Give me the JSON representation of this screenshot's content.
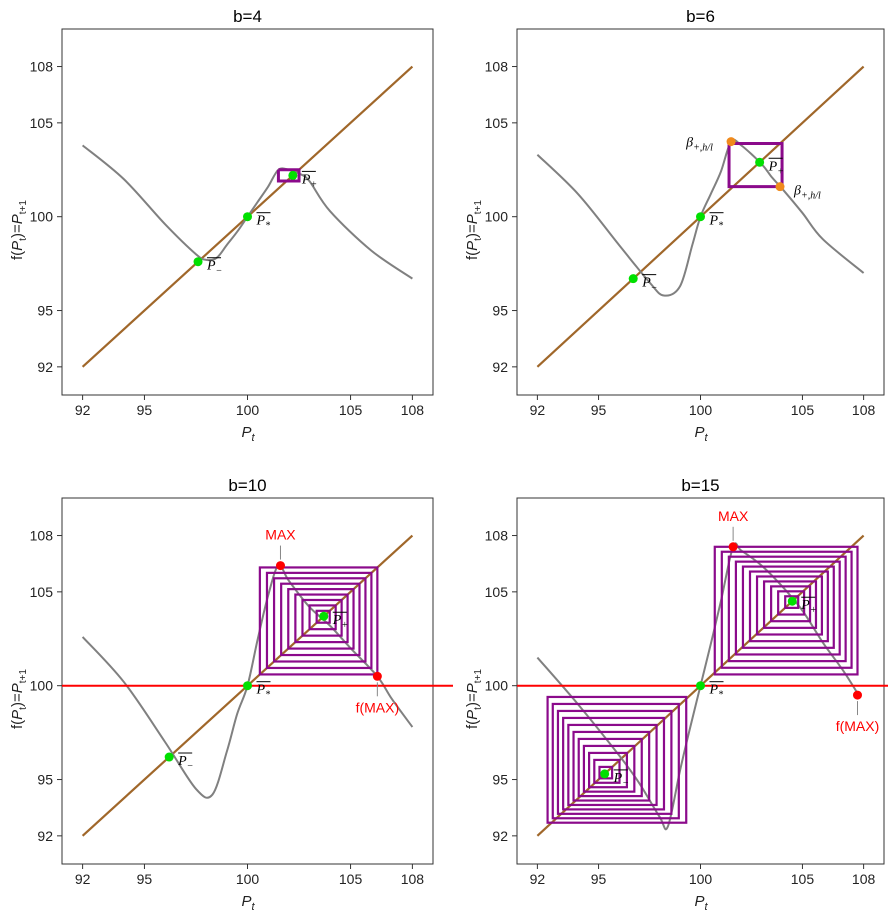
{
  "colors": {
    "diagonal": "#a0672a",
    "map_curve": "#808080",
    "cobweb": "#8b0a8b",
    "fixed_point": "#00e000",
    "max_marker": "#ff0000",
    "beta_marker": "#f08a1c",
    "horizontal_line": "#ff0000"
  },
  "chart_data": [
    {
      "type": "line",
      "title": "b=4",
      "b": 4,
      "xlabel": "P_t",
      "ylabel": "f(P_t)=P_{t+1}",
      "xlim": [
        91,
        109
      ],
      "ylim": [
        90.5,
        110
      ],
      "xticks": [
        92,
        95,
        100,
        105,
        108
      ],
      "yticks": [
        92,
        95,
        100,
        105,
        108
      ],
      "series": [
        {
          "kind": "diagonal",
          "x": [
            92,
            108
          ],
          "y": [
            92,
            108
          ]
        },
        {
          "kind": "map",
          "x": [
            92,
            94,
            96,
            97.5,
            98,
            98.5,
            99,
            99.5,
            100,
            100.5,
            101,
            101.5,
            102,
            102.5,
            103,
            104,
            106,
            108
          ],
          "y": [
            103.8,
            102,
            99.6,
            98,
            97.7,
            97.8,
            98.5,
            99.2,
            100,
            100.8,
            101.6,
            102.5,
            102.5,
            102.3,
            101.9,
            100.3,
            98.2,
            96.7
          ]
        },
        {
          "kind": "cobweb",
          "points": [
            [
              101.5,
              102.5
            ],
            [
              102.5,
              102.5
            ],
            [
              102.5,
              101.9
            ],
            [
              101.5,
              101.9
            ],
            [
              101.5,
              102.5
            ]
          ]
        }
      ],
      "fixed_points": [
        {
          "x": 97.6,
          "y": 97.6,
          "label": "P-"
        },
        {
          "x": 100,
          "y": 100,
          "label": "P*"
        },
        {
          "x": 102.2,
          "y": 102.2,
          "label": "P+"
        }
      ],
      "special_points": []
    },
    {
      "type": "line",
      "title": "b=6",
      "b": 6,
      "xlabel": "P_t",
      "ylabel": "f(P_t)=P_{t+1}",
      "xlim": [
        91,
        109
      ],
      "ylim": [
        90.5,
        110
      ],
      "xticks": [
        92,
        95,
        100,
        105,
        108
      ],
      "yticks": [
        92,
        95,
        100,
        105,
        108
      ],
      "series": [
        {
          "kind": "diagonal",
          "x": [
            92,
            108
          ],
          "y": [
            92,
            108
          ]
        },
        {
          "kind": "map",
          "x": [
            92,
            94,
            96,
            97.5,
            98.2,
            99,
            99.6,
            100,
            100.5,
            101,
            101.5,
            102,
            103,
            103.5,
            104,
            105,
            106,
            108
          ],
          "y": [
            103.3,
            101.2,
            98.5,
            96.5,
            95.8,
            96.3,
            98.5,
            100,
            101.2,
            102.4,
            104,
            103.8,
            102.8,
            102.1,
            101.5,
            100.2,
            98.8,
            97
          ]
        },
        {
          "kind": "cobweb",
          "points": [
            [
              101.4,
              103.9
            ],
            [
              104,
              103.9
            ],
            [
              104,
              101.6
            ],
            [
              101.4,
              101.6
            ],
            [
              101.4,
              103.9
            ]
          ]
        }
      ],
      "fixed_points": [
        {
          "x": 96.7,
          "y": 96.7,
          "label": "P-"
        },
        {
          "x": 100,
          "y": 100,
          "label": "P*"
        },
        {
          "x": 102.9,
          "y": 102.9,
          "label": "P+"
        }
      ],
      "special_points": [
        {
          "x": 101.5,
          "y": 104.0,
          "kind": "beta",
          "label": "β+,h/l"
        },
        {
          "x": 103.9,
          "y": 101.6,
          "kind": "beta",
          "label": "β+,h/l"
        }
      ]
    },
    {
      "type": "line",
      "title": "b=10",
      "b": 10,
      "xlabel": "P_t",
      "ylabel": "f(P_t)=P_{t+1}",
      "xlim": [
        91,
        109
      ],
      "ylim": [
        90.5,
        110
      ],
      "xticks": [
        92,
        95,
        100,
        105,
        108
      ],
      "yticks": [
        92,
        95,
        100,
        105,
        108
      ],
      "hline": 100,
      "series": [
        {
          "kind": "diagonal",
          "x": [
            92,
            108
          ],
          "y": [
            92,
            108
          ]
        },
        {
          "kind": "map",
          "x": [
            92,
            94,
            96,
            97.5,
            98.3,
            99,
            99.5,
            100,
            100.5,
            101,
            101.5,
            102,
            103,
            104,
            105,
            106.3,
            107,
            108
          ],
          "y": [
            102.6,
            100.2,
            97,
            94.5,
            94.2,
            96.5,
            98.5,
            100,
            102.5,
            104.8,
            106.4,
            105.6,
            104.2,
            103.2,
            102,
            100.5,
            99.3,
            97.8
          ]
        },
        {
          "kind": "cobweb-nest",
          "center": 103.7,
          "outer": [
            100.6,
            106.3,
            100.6,
            106.3
          ],
          "rings": 9
        }
      ],
      "fixed_points": [
        {
          "x": 96.2,
          "y": 96.2,
          "label": "P-"
        },
        {
          "x": 100,
          "y": 100,
          "label": "P*"
        },
        {
          "x": 103.7,
          "y": 103.7,
          "label": "P+"
        }
      ],
      "special_points": [
        {
          "x": 101.6,
          "y": 106.4,
          "kind": "max",
          "label": "MAX"
        },
        {
          "x": 106.3,
          "y": 100.5,
          "kind": "max",
          "label": "f(MAX)"
        }
      ]
    },
    {
      "type": "line",
      "title": "b=15",
      "b": 15,
      "xlabel": "P_t",
      "ylabel": "f(P_t)=P_{t+1}",
      "xlim": [
        91,
        109
      ],
      "ylim": [
        90.5,
        110
      ],
      "xticks": [
        92,
        95,
        100,
        105,
        108
      ],
      "yticks": [
        92,
        95,
        100,
        105,
        108
      ],
      "hline": 100,
      "series": [
        {
          "kind": "diagonal",
          "x": [
            92,
            108
          ],
          "y": [
            92,
            108
          ]
        },
        {
          "kind": "map",
          "x": [
            92,
            94,
            96,
            97,
            98,
            98.4,
            99,
            99.5,
            100,
            100.5,
            101,
            101.6,
            102,
            103,
            104,
            105,
            106,
            107,
            107.7
          ],
          "y": [
            101.5,
            99,
            96.3,
            94.8,
            93,
            92.5,
            95.5,
            97.8,
            100,
            102.2,
            104.5,
            107.4,
            107.2,
            106.4,
            105.3,
            104,
            102.3,
            100.8,
            99.6
          ]
        },
        {
          "kind": "cobweb-nest",
          "center": 104.5,
          "outer": [
            100.7,
            107.7,
            100.6,
            107.4
          ],
          "rings": 11
        },
        {
          "kind": "cobweb-nest",
          "center": 95.3,
          "outer": [
            92.5,
            99.3,
            92.7,
            99.4
          ],
          "rings": 11
        }
      ],
      "fixed_points": [
        {
          "x": 95.3,
          "y": 95.3,
          "label": "P-"
        },
        {
          "x": 100,
          "y": 100,
          "label": "P*"
        },
        {
          "x": 104.5,
          "y": 104.5,
          "label": "P+"
        }
      ],
      "special_points": [
        {
          "x": 101.6,
          "y": 107.4,
          "kind": "max",
          "label": "MAX"
        },
        {
          "x": 107.7,
          "y": 99.5,
          "kind": "max",
          "label": "f(MAX)"
        }
      ]
    }
  ]
}
